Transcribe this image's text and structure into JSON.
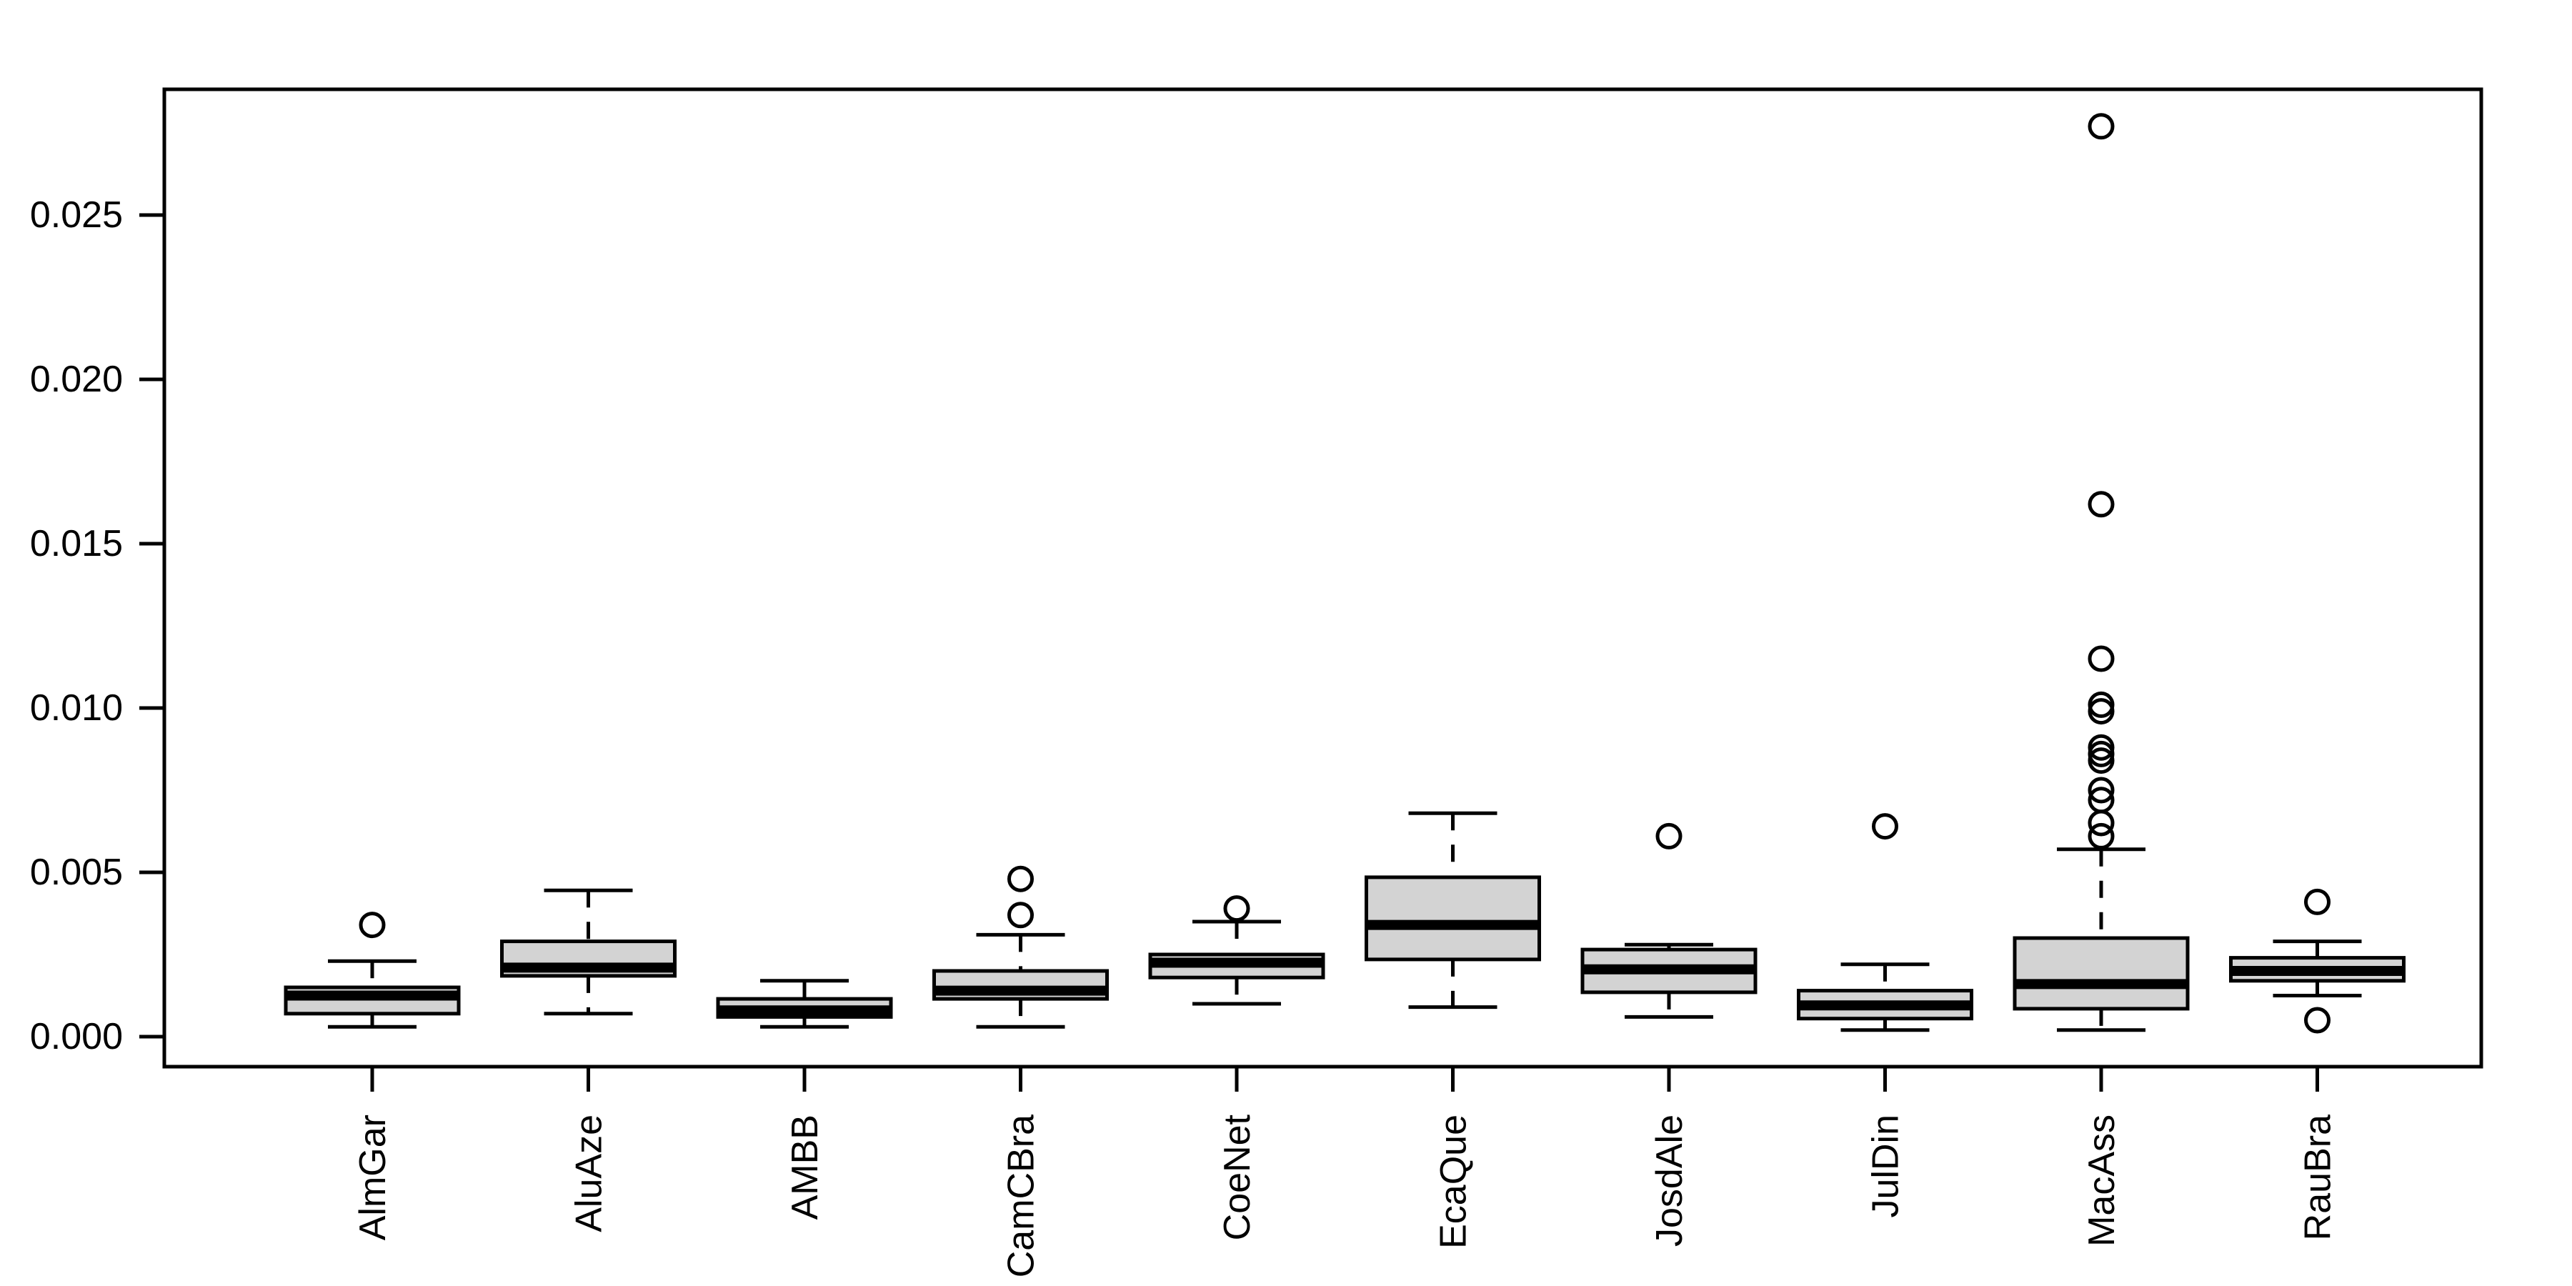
{
  "figure": {
    "background_color": "#ffffff",
    "frame_color": "#000000",
    "box_fill_color": "#d3d3d3",
    "box_border_color": "#000000",
    "median_color": "#000000",
    "whisker_color": "#000000",
    "outlier_color": "#000000",
    "title": "",
    "xlabel": "",
    "ylabel": ""
  },
  "chart_data": {
    "type": "boxplot",
    "title": "",
    "xlabel": "",
    "ylabel": "",
    "grid": false,
    "legend": "none",
    "ylim": [
      -0.0009,
      0.0289
    ],
    "y_ticks": [
      0,
      0.005,
      0.01,
      0.015,
      0.02,
      0.025
    ],
    "y_tick_labels": [
      "0.000",
      "0.005",
      "0.010",
      "0.015",
      "0.020",
      "0.025"
    ],
    "categories": [
      "AlmGar",
      "AluAze",
      "AMBB",
      "CamCBra",
      "CoeNet",
      "EcaQue",
      "JosdAle",
      "JulDin",
      "MacAss",
      "RauBra"
    ],
    "boxes": [
      {
        "label": "AlmGar",
        "whisker_low": 0.0003,
        "q1": 0.0007,
        "median": 0.00125,
        "q3": 0.0015,
        "whisker_high": 0.0023,
        "outliers": [
          0.0034
        ]
      },
      {
        "label": "AluAze",
        "whisker_low": 0.0007,
        "q1": 0.00185,
        "median": 0.0021,
        "q3": 0.0029,
        "whisker_high": 0.00445,
        "outliers": []
      },
      {
        "label": "AMBB",
        "whisker_low": 0.0003,
        "q1": 0.0006,
        "median": 0.0008,
        "q3": 0.00115,
        "whisker_high": 0.0017,
        "outliers": []
      },
      {
        "label": "CamCBra",
        "whisker_low": 0.0003,
        "q1": 0.00115,
        "median": 0.0014,
        "q3": 0.002,
        "whisker_high": 0.0031,
        "outliers": [
          0.0037,
          0.0048
        ]
      },
      {
        "label": "CoeNet",
        "whisker_low": 0.001,
        "q1": 0.0018,
        "median": 0.00225,
        "q3": 0.0025,
        "whisker_high": 0.0035,
        "outliers": [
          0.0039
        ]
      },
      {
        "label": "EcaQue",
        "whisker_low": 0.0009,
        "q1": 0.00235,
        "median": 0.0034,
        "q3": 0.00485,
        "whisker_high": 0.0068,
        "outliers": []
      },
      {
        "label": "JosdAle",
        "whisker_low": 0.0006,
        "q1": 0.00135,
        "median": 0.00205,
        "q3": 0.00265,
        "whisker_high": 0.0028,
        "outliers": [
          0.0061
        ]
      },
      {
        "label": "JulDin",
        "whisker_low": 0.0002,
        "q1": 0.00055,
        "median": 0.00095,
        "q3": 0.0014,
        "whisker_high": 0.0022,
        "outliers": [
          0.0064
        ]
      },
      {
        "label": "MacAss",
        "whisker_low": 0.0002,
        "q1": 0.00085,
        "median": 0.0016,
        "q3": 0.003,
        "whisker_high": 0.0057,
        "outliers": [
          0.0061,
          0.0065,
          0.0072,
          0.0075,
          0.0084,
          0.0086,
          0.0088,
          0.0099,
          0.0101,
          0.0115,
          0.0162,
          0.0277
        ]
      },
      {
        "label": "RauBra",
        "whisker_low": 0.00125,
        "q1": 0.0017,
        "median": 0.002,
        "q3": 0.0024,
        "whisker_high": 0.0029,
        "outliers": [
          0.0005,
          0.0041
        ]
      }
    ]
  }
}
